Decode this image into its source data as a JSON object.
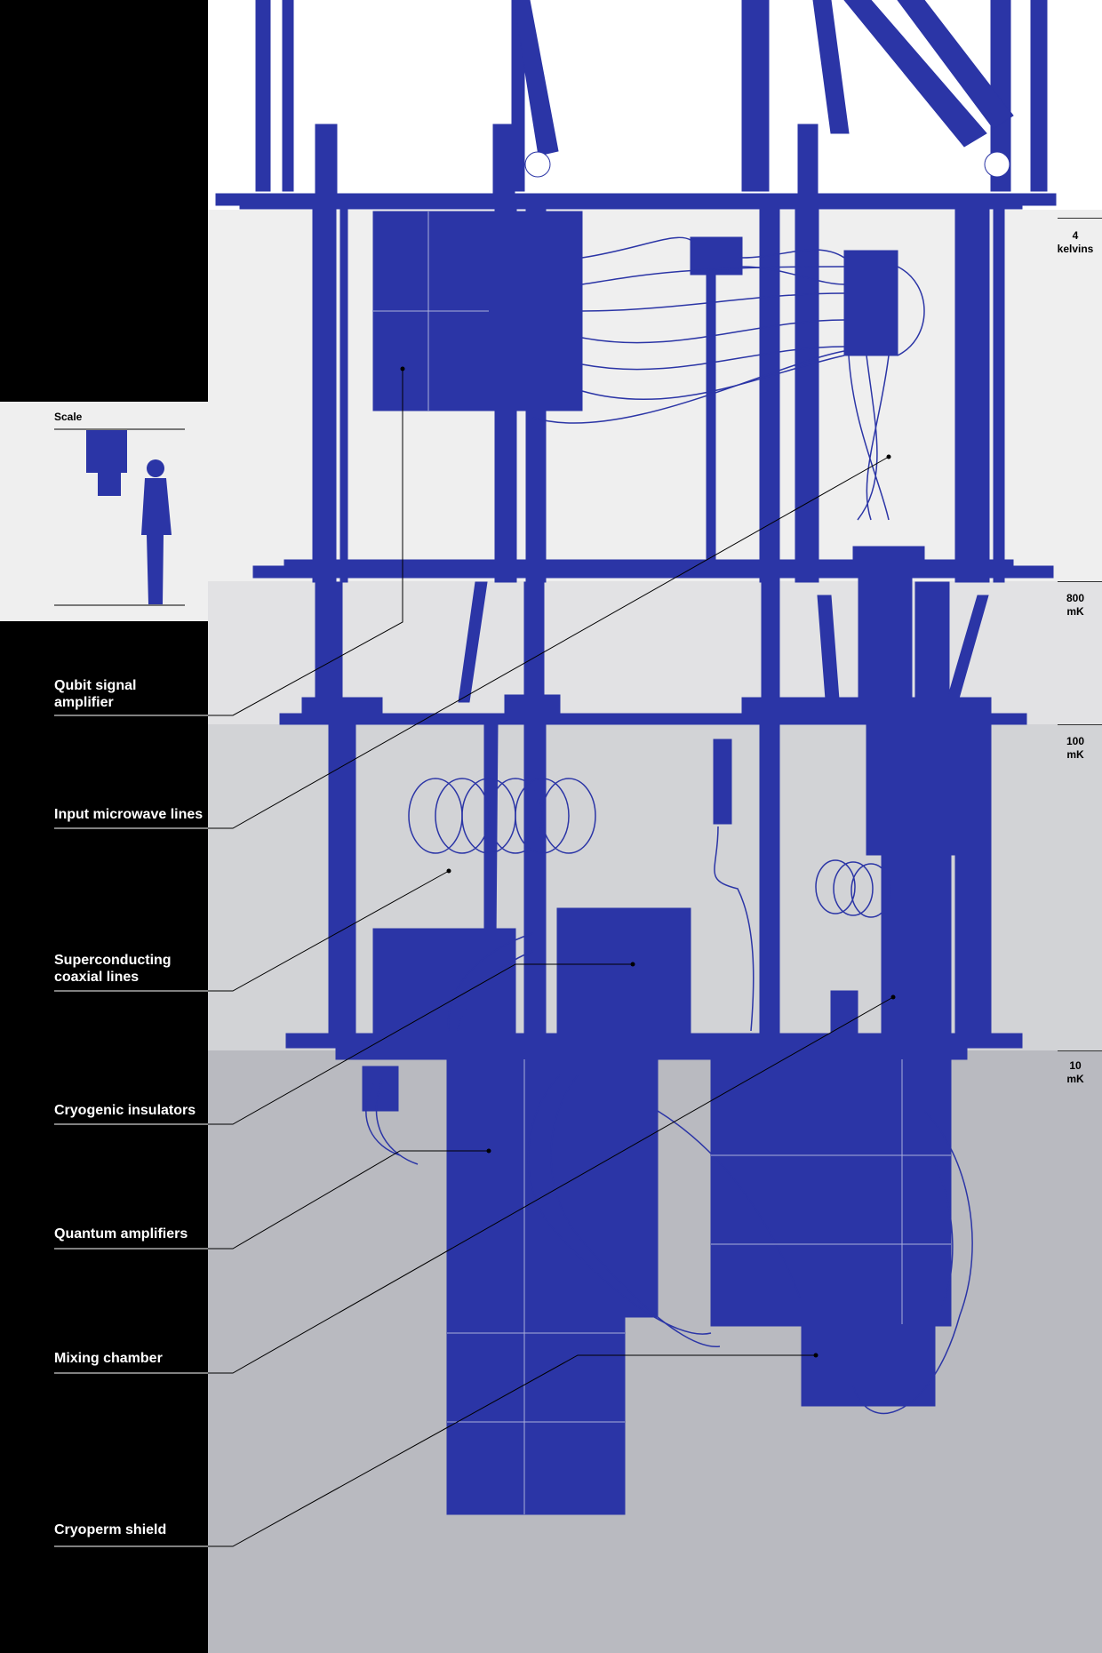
{
  "scale": {
    "title": "Scale"
  },
  "temperatures": [
    {
      "value": "4",
      "unit": "kelvins"
    },
    {
      "value": "800",
      "unit": "mK"
    },
    {
      "value": "100",
      "unit": "mK"
    },
    {
      "value": "10",
      "unit": "mK"
    }
  ],
  "labels": [
    {
      "text": "Qubit signal\namplifier"
    },
    {
      "text": "Input microwave lines"
    },
    {
      "text": "Superconducting\ncoaxial lines"
    },
    {
      "text": "Cryogenic insulators"
    },
    {
      "text": "Quantum amplifiers"
    },
    {
      "text": "Mixing chamber"
    },
    {
      "text": "Cryoperm shield"
    }
  ],
  "colors": {
    "structure": "#2b35a6",
    "sidebar": "#000000",
    "band_4k": "#efefef",
    "band_800mk": "#e2e2e4",
    "band_100mk": "#d2d3d6",
    "band_10mk": "#b9bac0"
  }
}
